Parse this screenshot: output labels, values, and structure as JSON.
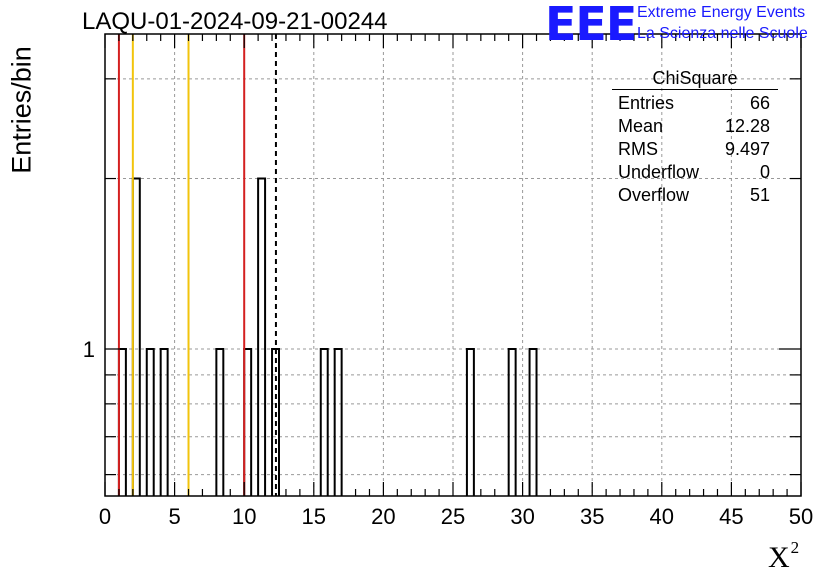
{
  "title": "LAQU-01-2024-09-21-00244",
  "logo": {
    "text": "EEE",
    "line1": "Extreme Energy Events",
    "line2": "La Scienza nelle Scuole",
    "color": "#1a1aff"
  },
  "chart_data": {
    "type": "bar",
    "xlabel": "X",
    "xlabel_superscript": "2",
    "ylabel": "Entries/bin",
    "xlim": [
      0,
      50
    ],
    "ylim_log": [
      0.55,
      3.6
    ],
    "y_scale": "log",
    "grid": true,
    "x_ticks": [
      "0",
      "5",
      "10",
      "15",
      "20",
      "25",
      "30",
      "35",
      "40",
      "45",
      "50"
    ],
    "y_tick_labels": [
      "1"
    ],
    "bin_width": 0.5,
    "bins": [
      {
        "x": 1.0,
        "value": 1
      },
      {
        "x": 2.0,
        "value": 2
      },
      {
        "x": 3.0,
        "value": 1
      },
      {
        "x": 4.0,
        "value": 1
      },
      {
        "x": 8.0,
        "value": 1
      },
      {
        "x": 10.0,
        "value": 1
      },
      {
        "x": 11.0,
        "value": 2
      },
      {
        "x": 12.0,
        "value": 1
      },
      {
        "x": 15.5,
        "value": 1
      },
      {
        "x": 16.5,
        "value": 1
      },
      {
        "x": 26.0,
        "value": 1
      },
      {
        "x": 29.0,
        "value": 1
      },
      {
        "x": 30.5,
        "value": 1
      }
    ],
    "vertical_lines": [
      {
        "x": 1.0,
        "color": "#d42020",
        "style": "solid"
      },
      {
        "x": 2.0,
        "color": "#f2c40c",
        "style": "solid"
      },
      {
        "x": 6.0,
        "color": "#f2c40c",
        "style": "solid"
      },
      {
        "x": 10.0,
        "color": "#d42020",
        "style": "solid"
      },
      {
        "x": 12.28,
        "color": "#000000",
        "style": "dashed"
      }
    ],
    "legend_placement": "top-right"
  },
  "stats": {
    "title": "ChiSquare",
    "rows": [
      {
        "label": "Entries",
        "value": "66"
      },
      {
        "label": "Mean",
        "value": "12.28"
      },
      {
        "label": "RMS",
        "value": "9.497"
      },
      {
        "label": "Underflow",
        "value": "0"
      },
      {
        "label": "Overflow",
        "value": "51"
      }
    ]
  }
}
